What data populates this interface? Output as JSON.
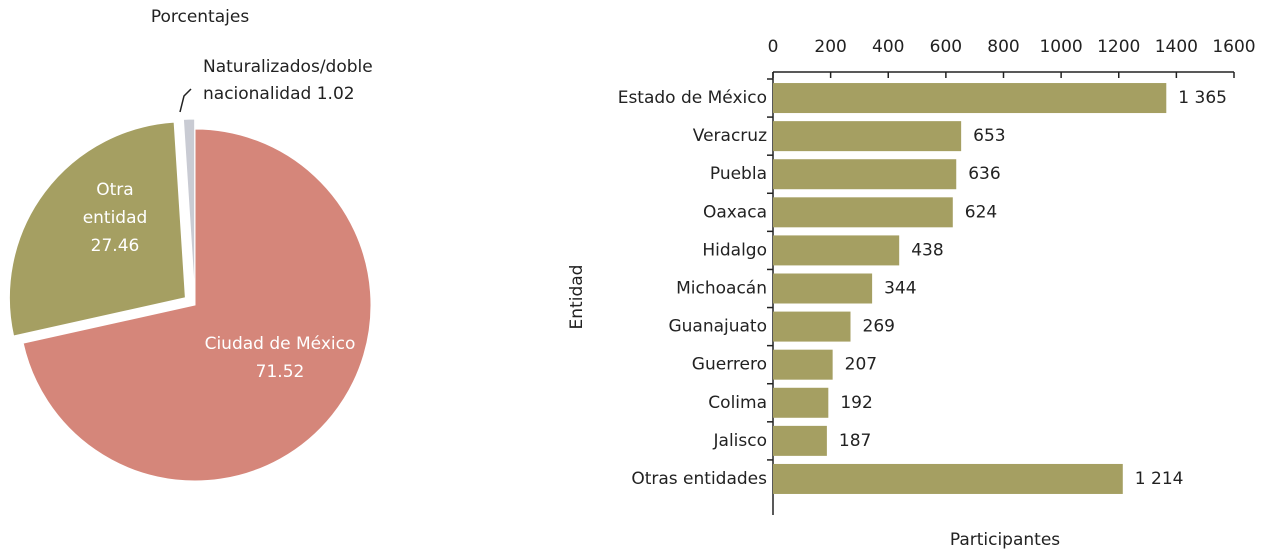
{
  "chart_data": [
    {
      "type": "pie",
      "title": "Porcentajes",
      "categories": [
        "Ciudad de México",
        "Otra entidad",
        "Naturalizados/doble nacionalidad"
      ],
      "values": [
        71.52,
        27.46,
        1.02
      ],
      "colors": [
        "#d5867a",
        "#a59f62",
        "#c9cbd3"
      ]
    },
    {
      "type": "barh",
      "categories": [
        "Estado de México",
        "Veracruz",
        "Puebla",
        "Oaxaca",
        "Hidalgo",
        "Michoacán",
        "Guanajuato",
        "Guerrero",
        "Colima",
        "Jalisco",
        "Otras entidades"
      ],
      "values": [
        1365,
        653,
        636,
        624,
        438,
        344,
        269,
        207,
        192,
        187,
        1214
      ],
      "value_labels": [
        "1 365",
        "653",
        "636",
        "624",
        "438",
        "344",
        "269",
        "207",
        "192",
        "187",
        "1 214"
      ],
      "color": "#a59f62",
      "xlim": [
        0,
        1600
      ],
      "xticks": [
        0,
        200,
        400,
        600,
        800,
        1000,
        1200,
        1400,
        1600
      ],
      "xlabel": "Participantes",
      "ylabel": "Entidad"
    }
  ]
}
